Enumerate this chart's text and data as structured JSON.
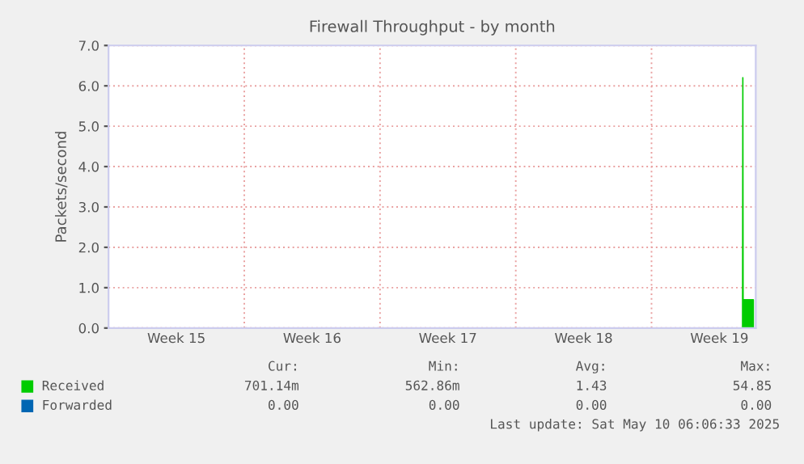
{
  "chart_data": {
    "type": "area",
    "title": "Firewall Throughput - by month",
    "ylabel": "Packets/second",
    "x": [
      "2025-05-09T16:40",
      "2025-05-09T17:00",
      "2025-05-09T17:20",
      "2025-05-10T06:00"
    ],
    "series": [
      {
        "name": "Received",
        "color": "#00cc00",
        "values": [
          0,
          6.2,
          0.7,
          0.7
        ]
      },
      {
        "name": "Forwarded",
        "color": "#0066b3",
        "values": [
          null,
          null,
          null,
          null
        ]
      }
    ],
    "xlim": [
      "2025-04-07T00:00",
      "2025-05-10T09:00"
    ],
    "xticks": [
      {
        "value": "2025-04-10T12:00",
        "label": "Week 15"
      },
      {
        "value": "2025-04-14T00:00",
        "label": null
      },
      {
        "value": "2025-04-17T12:00",
        "label": "Week 16"
      },
      {
        "value": "2025-04-21T00:00",
        "label": null
      },
      {
        "value": "2025-04-24T12:00",
        "label": "Week 17"
      },
      {
        "value": "2025-04-28T00:00",
        "label": null
      },
      {
        "value": "2025-05-01T12:00",
        "label": "Week 18"
      },
      {
        "value": "2025-05-05T00:00",
        "label": null
      },
      {
        "value": "2025-05-08T12:00",
        "label": "Week 19"
      }
    ],
    "ylim": [
      0,
      7
    ],
    "yticks": [
      {
        "value": 0,
        "label": "0.0"
      },
      {
        "value": 1,
        "label": "1.0"
      },
      {
        "value": 2,
        "label": "2.0"
      },
      {
        "value": 3,
        "label": "3.0"
      },
      {
        "value": 4,
        "label": "4.0"
      },
      {
        "value": 5,
        "label": "5.0"
      },
      {
        "value": 6,
        "label": "6.0"
      },
      {
        "value": 7,
        "label": "7.0"
      }
    ],
    "grid": true,
    "legend": "bottom",
    "annotations": [
      "Cur:",
      "Min:",
      "Avg:",
      "Max:",
      "701.14m",
      "562.86m",
      "1.43",
      "54.85",
      "0.00",
      "0.00",
      "0.00",
      "0.00",
      "Last update: Sat May 10 06:06:33 2025"
    ]
  }
}
